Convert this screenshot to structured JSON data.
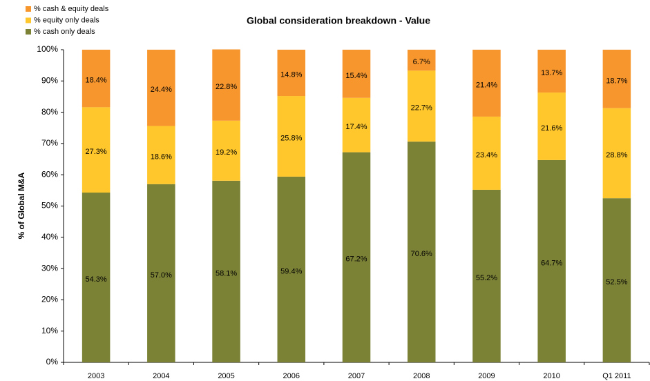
{
  "chart_data": {
    "type": "stacked_bar",
    "title": "Global consideration breakdown - Value",
    "y_label": "% of Global M&A",
    "categories": [
      "2003",
      "2004",
      "2005",
      "2006",
      "2007",
      "2008",
      "2009",
      "2010",
      "Q1 2011"
    ],
    "series": [
      {
        "name": "% cash only deals",
        "color": "#7b8236",
        "values": [
          54.3,
          57.0,
          58.1,
          59.4,
          67.2,
          70.6,
          55.2,
          64.7,
          52.5
        ],
        "value_labels": [
          "54.3%",
          "57.0%",
          "58.1%",
          "59.4%",
          "67.2%",
          "70.6%",
          "55.2%",
          "64.7%",
          "52.5%"
        ]
      },
      {
        "name": "% equity only deals",
        "color": "#ffc72c",
        "values": [
          27.3,
          18.6,
          19.2,
          25.8,
          17.4,
          22.7,
          23.4,
          21.6,
          28.8
        ],
        "value_labels": [
          "27.3%",
          "18.6%",
          "19.2%",
          "25.8%",
          "17.4%",
          "22.7%",
          "23.4%",
          "21.6%",
          "28.8%"
        ]
      },
      {
        "name": "% cash & equity deals",
        "color": "#f7962d",
        "values": [
          18.4,
          24.4,
          22.8,
          14.8,
          15.4,
          6.7,
          21.4,
          13.7,
          18.7
        ],
        "value_labels": [
          "18.4%",
          "24.4%",
          "22.8%",
          "14.8%",
          "15.4%",
          "6.7%",
          "21.4%",
          "13.7%",
          "18.7%"
        ]
      }
    ],
    "ylim": [
      0,
      100
    ],
    "yticks": [
      {
        "value": 0,
        "label": "0%"
      },
      {
        "value": 10,
        "label": "10%"
      },
      {
        "value": 20,
        "label": "20%"
      },
      {
        "value": 30,
        "label": "30%"
      },
      {
        "value": 40,
        "label": "40%"
      },
      {
        "value": 50,
        "label": "50%"
      },
      {
        "value": 60,
        "label": "60%"
      },
      {
        "value": 70,
        "label": "70%"
      },
      {
        "value": 80,
        "label": "80%"
      },
      {
        "value": 90,
        "label": "90%"
      },
      {
        "value": 100,
        "label": "100%"
      }
    ],
    "legend": "top-left"
  }
}
